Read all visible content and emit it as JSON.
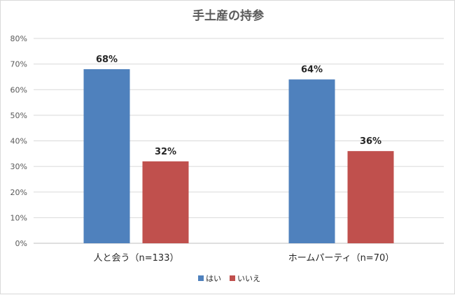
{
  "chart_data": {
    "type": "bar",
    "title": "手土産の持参",
    "categories": [
      "人と会う（n=133）",
      "ホームパーティ（n=70）"
    ],
    "series": [
      {
        "name": "はい",
        "values": [
          68,
          64
        ],
        "color": "#4f81bd"
      },
      {
        "name": "いいえ",
        "values": [
          32,
          36
        ],
        "color": "#c0504d"
      }
    ],
    "value_suffix": "%",
    "ylim": [
      0,
      80
    ],
    "ytick_step": 10,
    "ytick_labels": [
      "0%",
      "10%",
      "20%",
      "30%",
      "40%",
      "50%",
      "60%",
      "70%",
      "80%"
    ],
    "grid": true,
    "legend_position": "bottom",
    "xlabel": "",
    "ylabel": ""
  }
}
